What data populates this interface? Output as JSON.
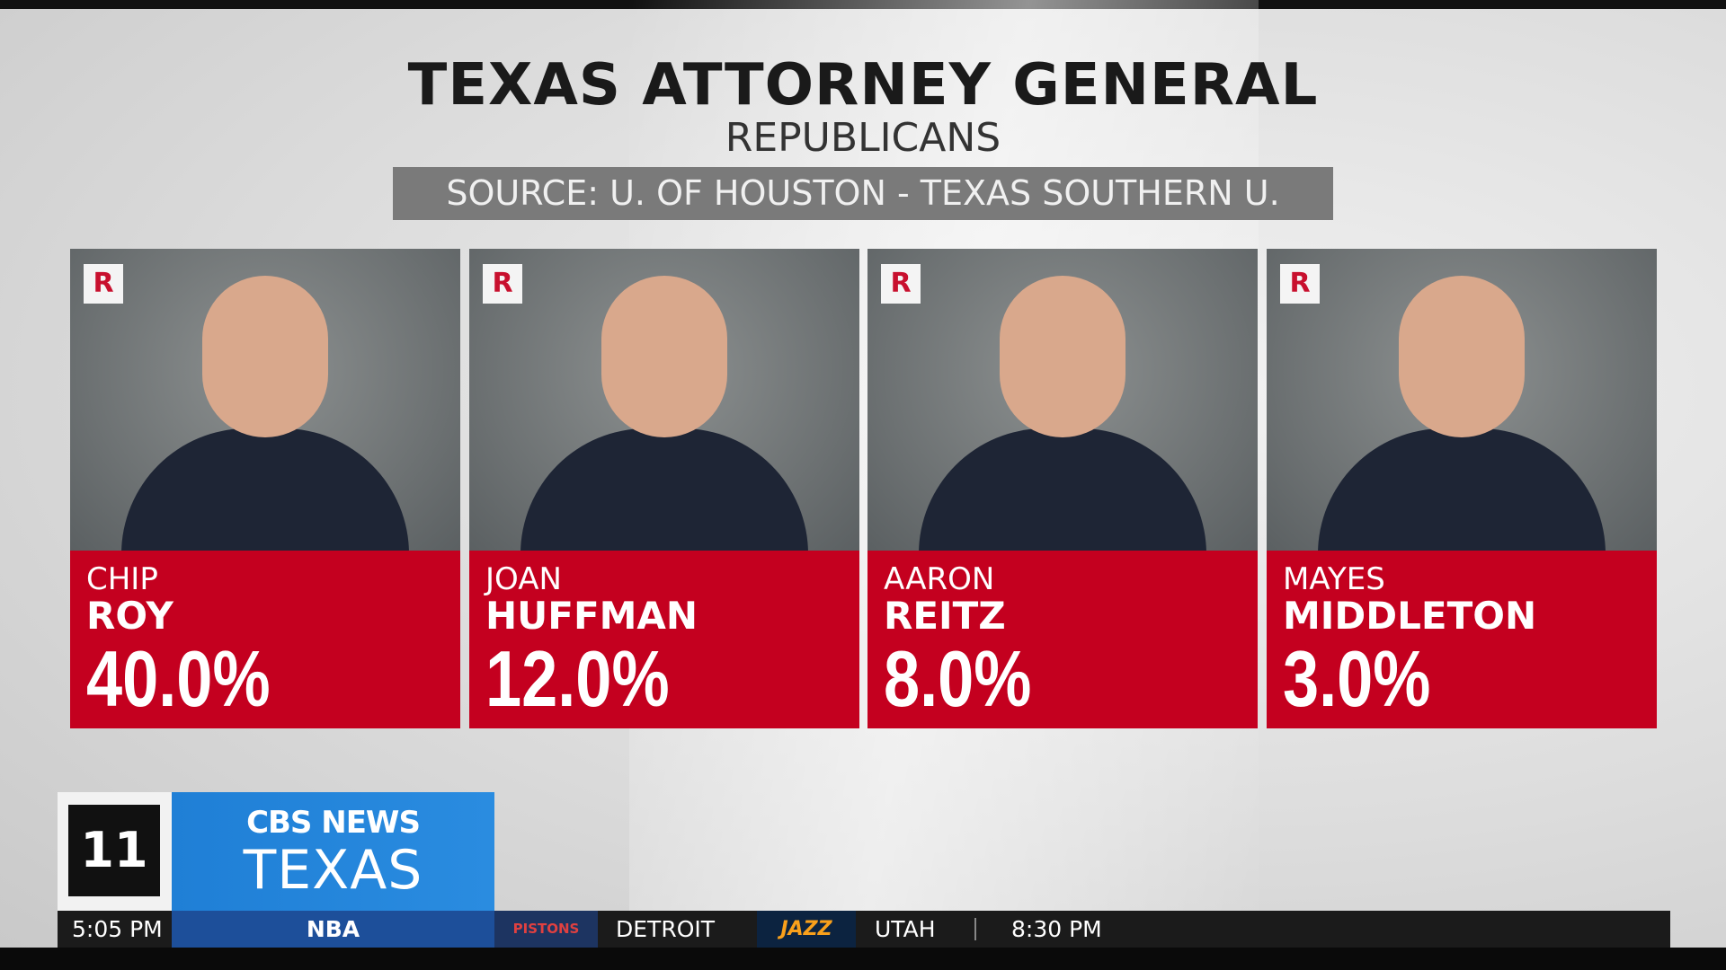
{
  "header": {
    "title": "TEXAS ATTORNEY GENERAL",
    "subtitle": "REPUBLICANS",
    "source": "SOURCE: U. OF HOUSTON - TEXAS SOUTHERN U."
  },
  "candidates": [
    {
      "party": "R",
      "first": "CHIP",
      "last": "ROY",
      "pct": "40.0%"
    },
    {
      "party": "R",
      "first": "JOAN",
      "last": "HUFFMAN",
      "pct": "12.0%"
    },
    {
      "party": "R",
      "first": "AARON",
      "last": "REITZ",
      "pct": "8.0%"
    },
    {
      "party": "R",
      "first": "MAYES",
      "last": "MIDDLETON",
      "pct": "3.0%"
    }
  ],
  "logo": {
    "channel": "11",
    "network": "CBS NEWS",
    "region": "TEXAS"
  },
  "ticker": {
    "time": "5:05 PM",
    "league": "NBA",
    "team1_logo": "PISTONS",
    "team1": "DETROIT",
    "team2_logo": "JAZZ",
    "team2": "UTAH",
    "game_time": "8:30 PM"
  }
}
